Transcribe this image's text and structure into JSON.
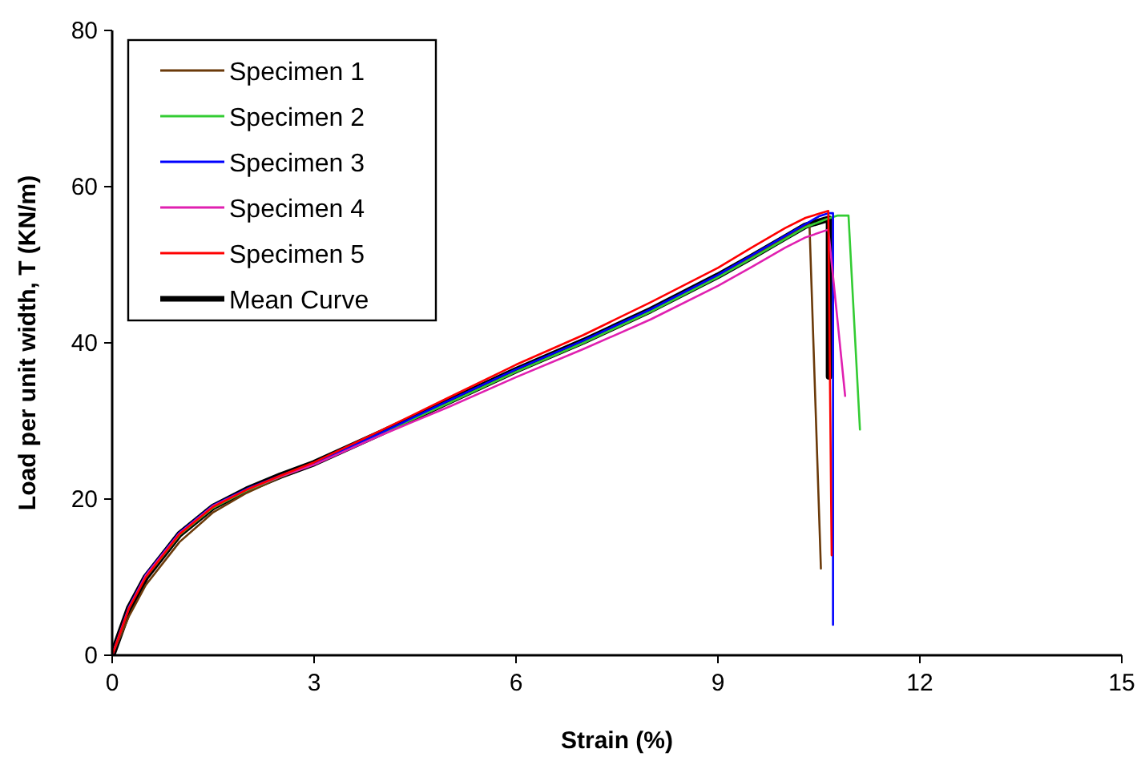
{
  "chart_data": {
    "type": "line",
    "xlabel": "Strain (%)",
    "ylabel": "Load per unit width, T (KN/m)",
    "xlim": [
      0,
      15
    ],
    "ylim": [
      0,
      80
    ],
    "xticks": [
      0,
      3,
      6,
      9,
      12,
      15
    ],
    "yticks": [
      0,
      20,
      40,
      60,
      80
    ],
    "grid": false,
    "legend": "top left",
    "marker": "none",
    "line_style": "solid",
    "series": [
      {
        "name": "Specimen 1",
        "color": "#6b3a0a",
        "x": [
          0,
          0.25,
          0.5,
          1,
          1.5,
          2,
          2.5,
          3,
          4,
          5,
          6,
          7,
          8,
          9,
          9.5,
          10,
          10.36,
          10.53
        ],
        "values": [
          0,
          5,
          9,
          14.5,
          18.3,
          20.8,
          22.8,
          24.5,
          28.4,
          32.3,
          36.3,
          40,
          44,
          48.6,
          51,
          53.5,
          55.2,
          11.1
        ]
      },
      {
        "name": "Specimen 2",
        "color": "#33cc33",
        "x": [
          0.5,
          1,
          1.5,
          2,
          2.5,
          3,
          4,
          5,
          6,
          7,
          8,
          9,
          9.5,
          10,
          10.3,
          10.6,
          10.78,
          10.94,
          11.11
        ],
        "values": [
          10,
          15.4,
          18.9,
          21.1,
          22.9,
          24.5,
          28.4,
          32.3,
          36.3,
          40,
          44,
          48.4,
          50.8,
          53.3,
          54.8,
          55.8,
          56.3,
          56.3,
          28.9
        ]
      },
      {
        "name": "Specimen 3",
        "color": "#0000ff",
        "x": [
          0,
          0.25,
          0.5,
          1,
          1.5,
          2,
          2.5,
          3,
          4,
          5,
          6,
          7,
          8,
          9,
          9.5,
          10,
          10.3,
          10.5,
          10.64,
          10.71,
          10.71
        ],
        "values": [
          0,
          6.2,
          10.3,
          15.7,
          19.2,
          21.3,
          23,
          24.6,
          28.5,
          32.6,
          36.6,
          40.3,
          44.3,
          48.7,
          51.2,
          53.7,
          55.2,
          56.2,
          56.6,
          56.6,
          3.9
        ]
      },
      {
        "name": "Specimen 4",
        "color": "#e020b0",
        "x": [
          0,
          0.25,
          0.5,
          1,
          1.5,
          2,
          2.5,
          3,
          4,
          5,
          6,
          7,
          8,
          9,
          9.5,
          10,
          10.3,
          10.64,
          10.89
        ],
        "values": [
          0,
          6.1,
          10.2,
          15.6,
          19.1,
          21.2,
          22.9,
          24.4,
          28.2,
          31.8,
          35.6,
          39.2,
          43,
          47.3,
          49.7,
          52.2,
          53.5,
          54.5,
          33.2
        ]
      },
      {
        "name": "Specimen 5",
        "color": "#ff0000",
        "x": [
          0,
          0.25,
          0.5,
          1,
          1.5,
          2,
          2.5,
          3,
          4,
          5,
          6,
          7,
          8,
          9,
          9.5,
          10,
          10.3,
          10.64,
          10.69
        ],
        "values": [
          0,
          6,
          10,
          15.5,
          19,
          21.2,
          23,
          24.7,
          28.8,
          33,
          37.2,
          41,
          45.2,
          49.6,
          52.2,
          54.7,
          56,
          56.9,
          12.8
        ]
      },
      {
        "name": "Mean Curve",
        "color": "#000000",
        "x": [
          0,
          0.25,
          0.5,
          1,
          1.5,
          2,
          2.5,
          3,
          4,
          5,
          6,
          7,
          8,
          9,
          9.5,
          10,
          10.3,
          10.65,
          10.65
        ],
        "values": [
          0,
          6,
          10,
          15.5,
          19,
          21.2,
          23,
          24.6,
          28.5,
          32.5,
          36.5,
          40.2,
          44.2,
          48.6,
          51,
          53.5,
          55,
          55.9,
          35.7
        ]
      }
    ]
  }
}
